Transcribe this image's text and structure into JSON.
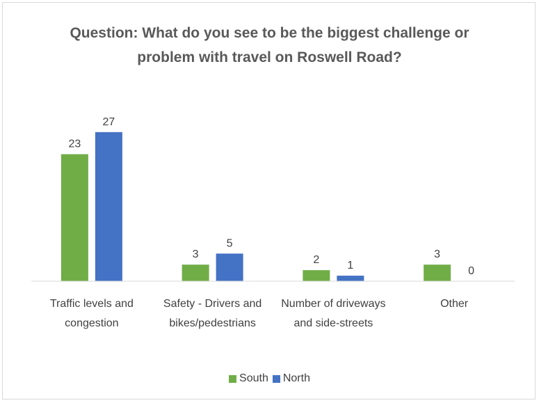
{
  "chart_data": {
    "type": "bar",
    "title": "Question: What do you see to be the biggest challenge or problem with travel on Roswell Road?",
    "categories": [
      "Traffic levels and congestion",
      "Safety - Drivers and bikes/pedestrians",
      "Number of driveways and side-streets",
      "Other"
    ],
    "series": [
      {
        "name": "South",
        "color": "#70ad47",
        "values": [
          23,
          3,
          2,
          3
        ]
      },
      {
        "name": "North",
        "color": "#4472c4",
        "values": [
          27,
          5,
          1,
          0
        ]
      }
    ],
    "ylim": [
      0,
      30
    ],
    "legend": "bottom"
  }
}
